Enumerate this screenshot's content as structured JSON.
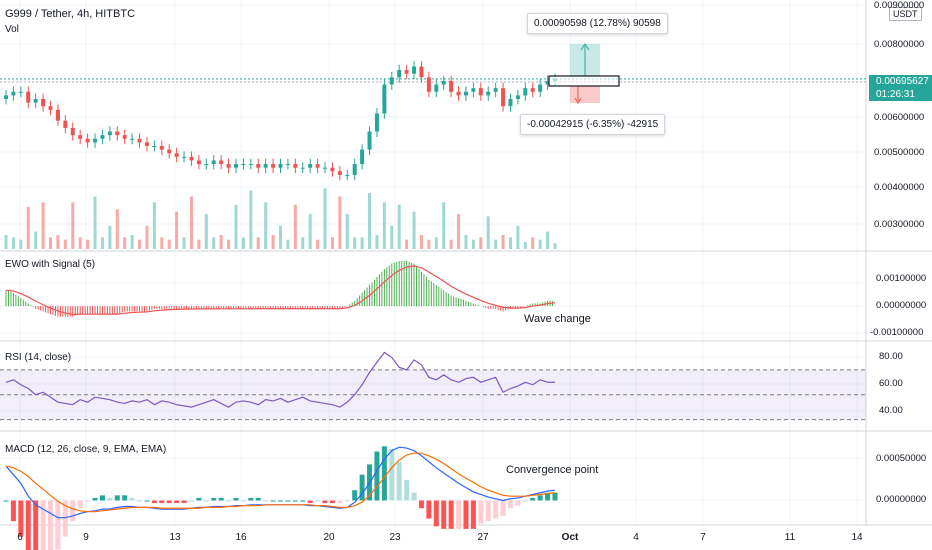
{
  "header": {
    "symbol_title": "G999 / Tether, 4h, HITBTC",
    "volume_label": "Vol",
    "currency_badge": "USDT",
    "last_price": "0.00695627",
    "countdown": "01:26:31"
  },
  "price_axis_ticks": [
    "0.00900000",
    "0.00800000",
    "0.00600000",
    "0.00500000",
    "0.00400000",
    "0.00300000"
  ],
  "x_ticks": [
    "6",
    "9",
    "13",
    "16",
    "20",
    "23",
    "27",
    "Oct",
    "4",
    "7",
    "11",
    "14"
  ],
  "measure": {
    "up_label": "0.00090598 (12.78%) 90598",
    "down_label": "-0.00042915 (-6.35%) -42915"
  },
  "ewo": {
    "title": "EWO with Signal (5)",
    "ticks": [
      "0.00100000",
      "0.00000000",
      "-0.00100000"
    ],
    "annotation": "Wave change"
  },
  "rsi": {
    "title": "RSI (14, close)",
    "ticks": [
      "80.00",
      "60.00",
      "40.00"
    ]
  },
  "macd": {
    "title": "MACD (12, 26, close, 9, EMA, EMA)",
    "ticks": [
      "0.00050000",
      "0.00000000"
    ],
    "annotation": "Convergence point"
  },
  "colors": {
    "up": "#26a69a",
    "down": "#ef5350",
    "rsi_line": "#7e57c2",
    "macd_line": "#2962ff",
    "signal_line": "#ff6d00",
    "ewo_up": "#4caf50",
    "ewo_down": "#ef5350"
  },
  "chart_data": {
    "type": "candlestick",
    "timeframe": "4h",
    "close": [
      0.0065,
      0.0066,
      0.0066,
      0.0063,
      0.0064,
      0.0062,
      0.0061,
      0.0058,
      0.0056,
      0.0054,
      0.0053,
      0.0052,
      0.0053,
      0.0054,
      0.0055,
      0.0054,
      0.0053,
      0.0053,
      0.0052,
      0.0051,
      0.0051,
      0.005,
      0.0049,
      0.0048,
      0.0048,
      0.0047,
      0.0046,
      0.0046,
      0.0047,
      0.0046,
      0.0045,
      0.0046,
      0.0046,
      0.0046,
      0.0045,
      0.0046,
      0.0045,
      0.0046,
      0.0046,
      0.0045,
      0.0045,
      0.0046,
      0.0045,
      0.0045,
      0.0044,
      0.0043,
      0.0043,
      0.0046,
      0.005,
      0.0055,
      0.006,
      0.0068,
      0.007,
      0.0072,
      0.0071,
      0.0073,
      0.007,
      0.0066,
      0.0068,
      0.0069,
      0.0066,
      0.0065,
      0.0066,
      0.0067,
      0.0065,
      0.0066,
      0.0067,
      0.0062,
      0.0064,
      0.0065,
      0.0067,
      0.0066,
      0.0068,
      0.0069,
      0.00695627
    ],
    "volume": [
      12,
      10,
      8,
      36,
      15,
      40,
      10,
      12,
      8,
      40,
      10,
      8,
      45,
      10,
      20,
      34,
      10,
      12,
      8,
      20,
      40,
      10,
      8,
      32,
      10,
      45,
      8,
      30,
      10,
      12,
      8,
      38,
      10,
      50,
      10,
      40,
      12,
      20,
      8,
      38,
      10,
      30,
      8,
      52,
      10,
      45,
      30,
      10,
      10,
      48,
      12,
      40,
      20,
      38,
      8,
      32,
      12,
      8,
      10,
      40,
      8,
      30,
      12,
      8,
      10,
      28,
      8,
      12,
      10,
      20,
      6,
      10,
      8,
      15,
      5
    ],
    "ewo": [
      0.0006,
      0.0005,
      0.0003,
      0.0001,
      -0.0001,
      -0.0002,
      -0.0003,
      -0.0004,
      -0.0004,
      -0.0004,
      -0.0003,
      -0.0003,
      -0.0003,
      -0.0003,
      -0.0003,
      -0.0003,
      -0.0002,
      -0.0002,
      -0.0002,
      -0.0002,
      -0.0001,
      -0.0001,
      -0.0001,
      -0.0001,
      -0.0001,
      -0.0001,
      -0.0001,
      -0.0001,
      -0.0001,
      -0.0001,
      -0.0001,
      -0.0001,
      -0.0001,
      -0.0001,
      -0.0001,
      -0.0001,
      -0.0001,
      -0.0001,
      -0.0001,
      -0.0001,
      -0.0001,
      -0.0001,
      -0.0001,
      -0.0001,
      -0.0001,
      -0.0001,
      0.0,
      0.0002,
      0.0005,
      0.0008,
      0.0011,
      0.0014,
      0.0016,
      0.0017,
      0.0017,
      0.0016,
      0.0013,
      0.001,
      0.0008,
      0.0006,
      0.0004,
      0.0003,
      0.0002,
      0.0001,
      0.0,
      -0.0001,
      -0.0001,
      -0.0002,
      -0.0001,
      -0.0001,
      0.0,
      0.0001,
      0.0001,
      0.0002,
      0.0002
    ],
    "rsi": [
      60,
      62,
      58,
      55,
      50,
      52,
      48,
      44,
      43,
      42,
      46,
      44,
      48,
      47,
      46,
      44,
      43,
      45,
      44,
      46,
      42,
      45,
      44,
      42,
      41,
      40,
      42,
      44,
      46,
      43,
      40,
      44,
      45,
      44,
      42,
      46,
      45,
      47,
      44,
      46,
      48,
      45,
      44,
      43,
      42,
      40,
      44,
      50,
      58,
      68,
      76,
      84,
      80,
      72,
      70,
      78,
      74,
      64,
      62,
      66,
      62,
      60,
      63,
      64,
      60,
      62,
      64,
      52,
      55,
      57,
      60,
      58,
      62,
      60,
      60
    ],
    "rsi_levels": [
      70,
      50,
      30
    ],
    "macd": [
      0.0004,
      0.0003,
      0.0002,
      5e-05,
      -5e-05,
      -0.0001,
      -0.00015,
      -0.0002,
      -0.0002,
      -0.00018,
      -0.00015,
      -0.00013,
      -0.00012,
      -0.0001,
      -0.0001,
      -8e-05,
      -7e-05,
      -7e-05,
      -8e-05,
      -8e-05,
      -9e-05,
      -0.0001,
      -0.0001,
      -0.0001,
      -0.0001,
      -9e-05,
      -8e-05,
      -8e-05,
      -7e-05,
      -7e-05,
      -7e-05,
      -6e-05,
      -6e-05,
      -5e-05,
      -5e-05,
      -5e-05,
      -5e-05,
      -5e-05,
      -5e-05,
      -5e-05,
      -5e-05,
      -6e-05,
      -6e-05,
      -7e-05,
      -8e-05,
      -9e-05,
      -8e-05,
      -2e-05,
      8e-05,
      0.0002,
      0.00035,
      0.00048,
      0.00058,
      0.00062,
      0.00061,
      0.00058,
      0.00052,
      0.00045,
      0.00038,
      0.00032,
      0.00026,
      0.0002,
      0.00015,
      0.0001,
      7e-05,
      4e-05,
      2e-05,
      0.0,
      2e-05,
      3e-05,
      5e-05,
      7e-05,
      9e-05,
      0.00011,
      0.00012
    ],
    "signal": [
      0.0004,
      0.00038,
      0.00034,
      0.00028,
      0.0002,
      0.00013,
      6e-05,
      -1e-05,
      -6e-05,
      -0.0001,
      -0.00012,
      -0.00013,
      -0.00013,
      -0.00012,
      -0.00011,
      -0.0001,
      -9e-05,
      -8e-05,
      -8e-05,
      -8e-05,
      -8e-05,
      -9e-05,
      -9e-05,
      -9e-05,
      -9e-05,
      -9e-05,
      -9e-05,
      -8e-05,
      -8e-05,
      -8e-05,
      -7e-05,
      -7e-05,
      -6e-05,
      -6e-05,
      -6e-05,
      -5e-05,
      -5e-05,
      -5e-05,
      -5e-05,
      -5e-05,
      -5e-05,
      -5e-05,
      -6e-05,
      -6e-05,
      -7e-05,
      -8e-05,
      -8e-05,
      -6e-05,
      -2e-05,
      6e-05,
      0.00016,
      0.00027,
      0.00038,
      0.00047,
      0.00053,
      0.00055,
      0.00055,
      0.00052,
      0.00048,
      0.00043,
      0.00037,
      0.00031,
      0.00026,
      0.00021,
      0.00016,
      0.00012,
      9e-05,
      6e-05,
      5e-05,
      5e-05,
      5e-05,
      6e-05,
      7e-05,
      8e-05,
      9e-05
    ],
    "ylim_price": [
      0.0025,
      0.009
    ]
  }
}
